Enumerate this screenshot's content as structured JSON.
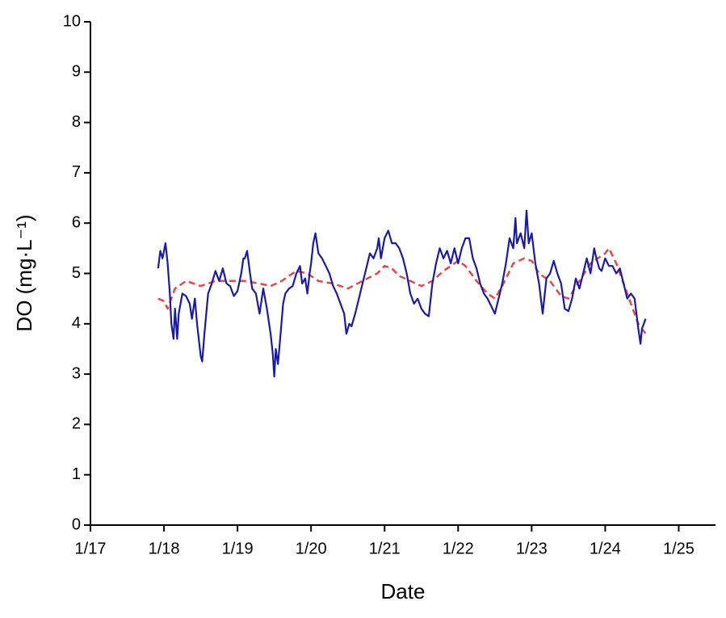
{
  "chart_data": {
    "type": "line",
    "x_label": "Date",
    "y_label": "DO (mg·L⁻¹)",
    "xlim": [
      17,
      25.5
    ],
    "ylim": [
      0,
      10
    ],
    "xticks": [
      {
        "value": 17,
        "label": "1/17"
      },
      {
        "value": 18,
        "label": "1/18"
      },
      {
        "value": 19,
        "label": "1/19"
      },
      {
        "value": 20,
        "label": "1/20"
      },
      {
        "value": 21,
        "label": "1/21"
      },
      {
        "value": 22,
        "label": "1/22"
      },
      {
        "value": 23,
        "label": "1/23"
      },
      {
        "value": 24,
        "label": "1/24"
      },
      {
        "value": 25,
        "label": "1/25"
      }
    ],
    "yticks": [
      0,
      1,
      2,
      3,
      4,
      5,
      6,
      7,
      8,
      9,
      10
    ],
    "series": [
      {
        "color": "#1a1aaa",
        "dash": false,
        "x": [
          17.92,
          17.95,
          17.98,
          18.0,
          18.02,
          18.05,
          18.08,
          18.1,
          18.13,
          18.15,
          18.18,
          18.2,
          18.25,
          18.3,
          18.35,
          18.38,
          18.42,
          18.45,
          18.5,
          18.52,
          18.55,
          18.6,
          18.65,
          18.7,
          18.75,
          18.8,
          18.85,
          18.9,
          18.95,
          19.0,
          19.05,
          19.08,
          19.1,
          19.13,
          19.17,
          19.2,
          19.25,
          19.3,
          19.35,
          19.4,
          19.45,
          19.48,
          19.5,
          19.52,
          19.55,
          19.58,
          19.62,
          19.65,
          19.7,
          19.75,
          19.8,
          19.85,
          19.88,
          19.92,
          19.95,
          19.98,
          20.0,
          20.03,
          20.06,
          20.1,
          20.15,
          20.2,
          20.25,
          20.3,
          20.35,
          20.4,
          20.45,
          20.48,
          20.52,
          20.55,
          20.6,
          20.65,
          20.7,
          20.75,
          20.8,
          20.85,
          20.9,
          20.92,
          20.95,
          21.0,
          21.05,
          21.1,
          21.15,
          21.2,
          21.25,
          21.3,
          21.35,
          21.4,
          21.45,
          21.5,
          21.55,
          21.6,
          21.65,
          21.7,
          21.75,
          21.8,
          21.85,
          21.9,
          21.95,
          22.0,
          22.05,
          22.1,
          22.15,
          22.2,
          22.25,
          22.3,
          22.35,
          22.4,
          22.45,
          22.5,
          22.55,
          22.6,
          22.65,
          22.7,
          22.75,
          22.78,
          22.8,
          22.85,
          22.9,
          22.93,
          22.96,
          23.0,
          23.05,
          23.1,
          23.15,
          23.2,
          23.25,
          23.3,
          23.35,
          23.4,
          23.45,
          23.5,
          23.55,
          23.6,
          23.65,
          23.7,
          23.75,
          23.8,
          23.85,
          23.88,
          23.92,
          23.95,
          24.0,
          24.05,
          24.1,
          24.15,
          24.2,
          24.25,
          24.3,
          24.35,
          24.4,
          24.45,
          24.48,
          24.5,
          24.55
        ],
        "values": [
          5.1,
          5.45,
          5.3,
          5.45,
          5.6,
          5.2,
          4.6,
          4.0,
          3.7,
          4.3,
          3.7,
          4.2,
          4.6,
          4.55,
          4.4,
          4.1,
          4.5,
          4.0,
          3.35,
          3.25,
          3.8,
          4.6,
          4.8,
          5.05,
          4.85,
          5.1,
          4.8,
          4.75,
          4.55,
          4.65,
          5.0,
          5.3,
          5.3,
          5.45,
          5.0,
          4.7,
          4.6,
          4.2,
          4.7,
          4.3,
          3.8,
          3.4,
          2.95,
          3.5,
          3.2,
          3.7,
          4.4,
          4.6,
          4.7,
          4.75,
          5.0,
          5.15,
          4.8,
          4.9,
          4.6,
          5.0,
          5.2,
          5.6,
          5.8,
          5.4,
          5.3,
          5.15,
          5.0,
          4.75,
          4.6,
          4.4,
          4.2,
          3.8,
          4.0,
          3.95,
          4.2,
          4.5,
          4.8,
          5.1,
          5.4,
          5.3,
          5.5,
          5.7,
          5.3,
          5.7,
          5.85,
          5.6,
          5.6,
          5.5,
          5.3,
          5.0,
          4.6,
          4.4,
          4.5,
          4.3,
          4.2,
          4.15,
          4.8,
          5.2,
          5.5,
          5.3,
          5.45,
          5.2,
          5.5,
          5.2,
          5.5,
          5.7,
          5.7,
          5.3,
          5.1,
          4.8,
          4.6,
          4.5,
          4.35,
          4.2,
          4.5,
          4.8,
          5.2,
          5.7,
          5.5,
          6.1,
          5.6,
          5.8,
          5.5,
          6.25,
          5.6,
          5.8,
          5.2,
          4.8,
          4.2,
          4.9,
          5.0,
          5.25,
          5.0,
          4.8,
          4.3,
          4.25,
          4.5,
          4.9,
          4.7,
          5.0,
          5.3,
          5.0,
          5.5,
          5.3,
          5.1,
          5.05,
          5.3,
          5.15,
          5.15,
          5.0,
          5.1,
          4.8,
          4.5,
          4.6,
          4.5,
          3.9,
          3.6,
          3.9,
          4.1
        ]
      },
      {
        "color": "#e8474a",
        "dash": true,
        "x": [
          17.92,
          18.0,
          18.05,
          18.15,
          18.3,
          18.5,
          18.7,
          18.9,
          19.1,
          19.3,
          19.45,
          19.6,
          19.8,
          19.95,
          20.1,
          20.3,
          20.5,
          20.7,
          20.9,
          21.0,
          21.1,
          21.2,
          21.35,
          21.5,
          21.65,
          21.8,
          22.0,
          22.1,
          22.25,
          22.4,
          22.5,
          22.6,
          22.75,
          22.9,
          23.0,
          23.1,
          23.25,
          23.4,
          23.5,
          23.65,
          23.8,
          24.0,
          24.05,
          24.15,
          24.3,
          24.45,
          24.55
        ],
        "values": [
          4.5,
          4.45,
          4.3,
          4.7,
          4.85,
          4.75,
          4.85,
          4.85,
          4.85,
          4.8,
          4.75,
          4.85,
          5.05,
          5.0,
          4.85,
          4.8,
          4.7,
          4.85,
          5.0,
          5.15,
          5.1,
          4.95,
          4.85,
          4.75,
          4.85,
          5.05,
          5.25,
          5.15,
          4.85,
          4.6,
          4.5,
          4.75,
          5.2,
          5.3,
          5.25,
          5.0,
          4.85,
          4.55,
          4.5,
          4.85,
          5.2,
          5.4,
          5.5,
          5.2,
          4.6,
          4.0,
          3.8
        ]
      }
    ]
  }
}
